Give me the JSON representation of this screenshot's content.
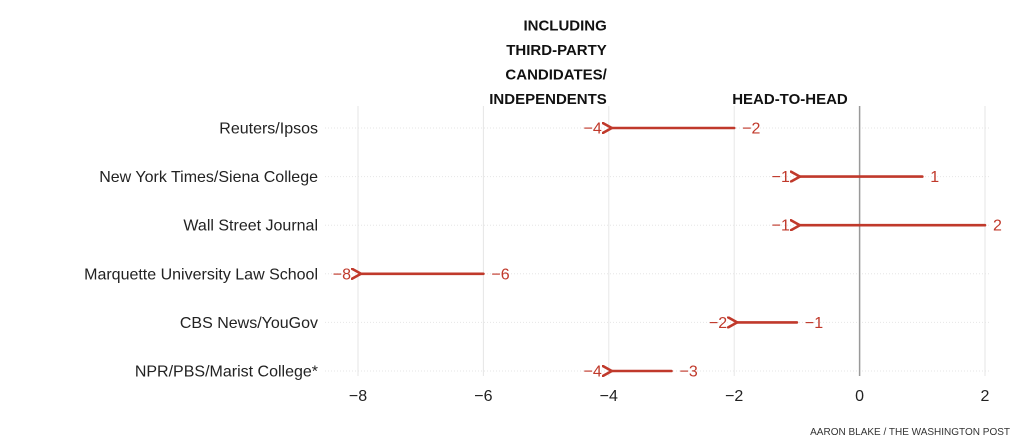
{
  "chart_data": {
    "type": "arrow-dumbbell",
    "headers": {
      "including": [
        "INCLUDING",
        "THIRD-PARTY",
        "CANDIDATES/",
        "INDEPENDENTS"
      ],
      "head_to_head": "HEAD-TO-HEAD"
    },
    "categories": [
      "Reuters/Ipsos",
      "New York Times/Siena College",
      "Wall Street Journal",
      "Marquette University Law School",
      "CBS News/YouGov",
      "NPR/PBS/Marist College*"
    ],
    "series": [
      {
        "name": "HEAD-TO-HEAD",
        "values": [
          -2,
          1,
          2,
          -6,
          -1,
          -3
        ]
      },
      {
        "name": "INCLUDING THIRD-PARTY CANDIDATES/ INDEPENDENTS",
        "values": [
          -4,
          -1,
          -1,
          -8,
          -2,
          -4
        ]
      }
    ],
    "value_labels": {
      "head_to_head": [
        "−2",
        "1",
        "2",
        "−6",
        "−1",
        "−3"
      ],
      "including": [
        "−4",
        "−1",
        "−1",
        "−8",
        "−2",
        "−4"
      ]
    },
    "xlim": [
      -8,
      2
    ],
    "xticks": [
      -8,
      -6,
      -4,
      -2,
      0,
      2
    ],
    "xtick_labels": [
      "−8",
      "−6",
      "−4",
      "−2",
      "0",
      "2"
    ],
    "grid": true,
    "colors": {
      "arrow": "#c0392b",
      "label": "#c0392b",
      "grid": "#e6e6e6",
      "zero_line": "#999999"
    }
  },
  "credit": "AARON BLAKE / THE WASHINGTON POST"
}
